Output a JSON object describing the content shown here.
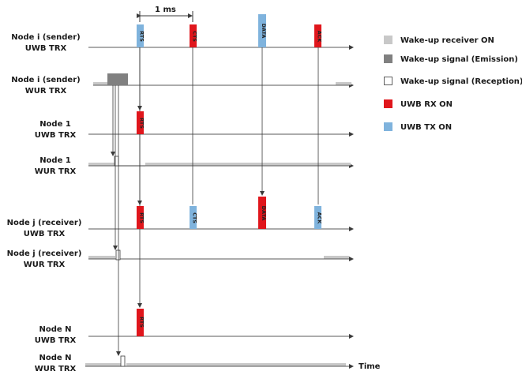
{
  "scale_label": "1 ms",
  "time_label": "Time",
  "rows": [
    {
      "line1": "Node i (sender)",
      "line2": "UWB TRX"
    },
    {
      "line1": "Node i (sender)",
      "line2": "WUR TRX"
    },
    {
      "line1": "Node 1",
      "line2": "UWB TRX"
    },
    {
      "line1": "Node 1",
      "line2": "WUR TRX"
    },
    {
      "line1": "Node j (receiver)",
      "line2": "UWB TRX"
    },
    {
      "line1": "Node j (receiver)",
      "line2": "WUR TRX"
    },
    {
      "line1": "Node N",
      "line2": "UWB TRX"
    },
    {
      "line1": "Node N",
      "line2": "WUR TRX"
    }
  ],
  "legend": [
    {
      "label": "Wake-up receiver ON",
      "color": "#c8c8c8"
    },
    {
      "label": "Wake-up signal (Emission)",
      "color": "#808080"
    },
    {
      "label": "Wake-up signal (Reception)",
      "color": "#ffffff"
    },
    {
      "label": "UWB RX ON",
      "color": "#e0161c"
    },
    {
      "label": "UWB TX ON",
      "color": "#7fb3dd"
    }
  ],
  "packets": {
    "rts": "RTS",
    "cts": "CTS",
    "data": "DATA",
    "ack": "ACK"
  },
  "colors": {
    "tx": "#7fb3dd",
    "rx": "#e0161c",
    "wur_on": "#c8c8c8",
    "wu_emit": "#808080",
    "line": "#5a5a5a"
  }
}
